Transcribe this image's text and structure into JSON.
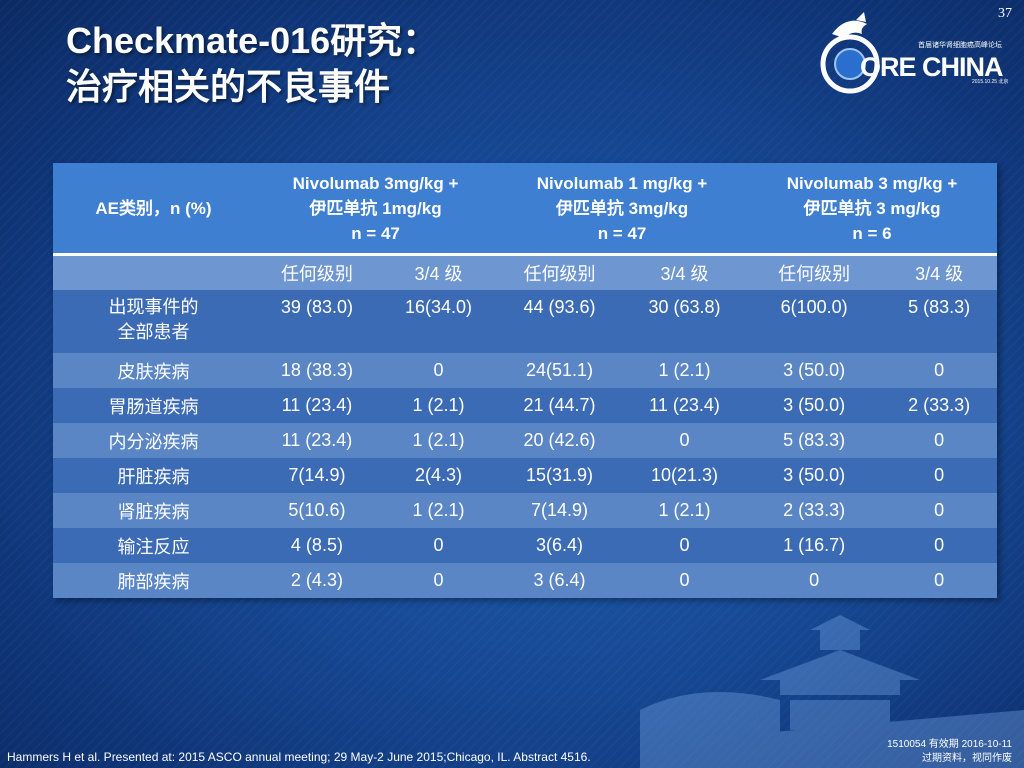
{
  "page_number": "37",
  "title": {
    "line1": "Checkmate-016研究：",
    "line2": "治疗相关的不良事件"
  },
  "logo": {
    "word": "ORE CHINA",
    "subtitle": "首届诸华肾细胞癌高峰论坛",
    "date": "2015.10.25 北京"
  },
  "table": {
    "header": {
      "ae_category": "AE类别，n (%)",
      "groups": [
        {
          "line1": "Nivolumab 3mg/kg +",
          "line2": "伊匹单抗 1mg/kg",
          "line3": "n = 47"
        },
        {
          "line1": "Nivolumab 1 mg/kg +",
          "line2": "伊匹单抗 3mg/kg",
          "line3": "n = 47"
        },
        {
          "line1": "Nivolumab 3 mg/kg +",
          "line2": "伊匹单抗 3 mg/kg",
          "line3": "n = 6"
        }
      ]
    },
    "subheader": [
      "任何级别",
      "3/4 级",
      "任何级别",
      "3/4 级",
      "任何级别",
      "3/4 级"
    ],
    "rows": [
      {
        "label1": "出现事件的",
        "label2": "全部患者",
        "values": [
          "39 (83.0)",
          "16(34.0)",
          "44 (93.6)",
          "30 (63.8)",
          "6(100.0)",
          "5 (83.3)"
        ]
      },
      {
        "label1": "皮肤疾病",
        "label2": "",
        "values": [
          "18 (38.3)",
          "0",
          "24(51.1)",
          "1 (2.1)",
          "3 (50.0)",
          "0"
        ]
      },
      {
        "label1": "胃肠道疾病",
        "label2": "",
        "values": [
          "11 (23.4)",
          "1 (2.1)",
          "21 (44.7)",
          "11 (23.4)",
          "3 (50.0)",
          "2 (33.3)"
        ]
      },
      {
        "label1": "内分泌疾病",
        "label2": "",
        "values": [
          "11 (23.4)",
          "1 (2.1)",
          "20 (42.6)",
          "0",
          "5 (83.3)",
          "0"
        ]
      },
      {
        "label1": "肝脏疾病",
        "label2": "",
        "values": [
          "7(14.9)",
          "2(4.3)",
          "15(31.9)",
          "10(21.3)",
          "3 (50.0)",
          "0"
        ]
      },
      {
        "label1": "肾脏疾病",
        "label2": "",
        "values": [
          "5(10.6)",
          "1 (2.1)",
          "7(14.9)",
          "1 (2.1)",
          "2 (33.3)",
          "0"
        ]
      },
      {
        "label1": "输注反应",
        "label2": "",
        "values": [
          "4 (8.5)",
          "0",
          "3(6.4)",
          "0",
          "1 (16.7)",
          "0"
        ]
      },
      {
        "label1": "肺部疾病",
        "label2": "",
        "values": [
          "2 (4.3)",
          "0",
          "3 (6.4)",
          "0",
          "0",
          "0"
        ]
      }
    ]
  },
  "footer": {
    "reference": "Hammers H et al. Presented at: 2015 ASCO annual meeting; 29 May-2 June 2015;Chicago, IL. Abstract 4516.",
    "code_line1": "1510054  有效期 2016-10-11",
    "code_line2": "过期资料，视同作废"
  }
}
